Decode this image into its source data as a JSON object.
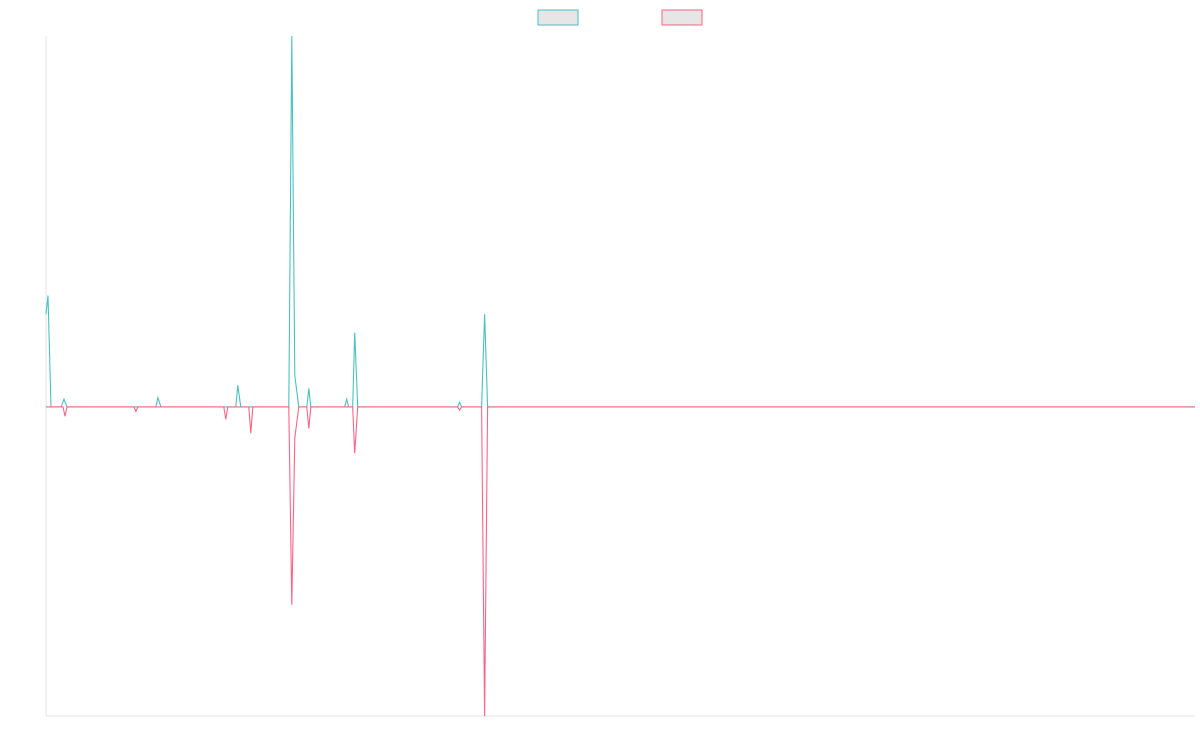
{
  "chart_data": {
    "type": "line",
    "title": "",
    "xlabel": "",
    "ylabel": "",
    "legend_position": "top-center",
    "grid": false,
    "x_range": [
      0,
      115
    ],
    "ylim": [
      -10,
      12
    ],
    "series": [
      {
        "name": "",
        "color": "#4bc0c0",
        "fill": "#e6e6e6",
        "points": [
          [
            0,
            3
          ],
          [
            0.2,
            3.6
          ],
          [
            0.5,
            0
          ],
          [
            1.5,
            0
          ],
          [
            1.8,
            0.25
          ],
          [
            2.1,
            0
          ],
          [
            11,
            0
          ],
          [
            11.2,
            0.3
          ],
          [
            11.5,
            0
          ],
          [
            19,
            0
          ],
          [
            19.2,
            0.7
          ],
          [
            19.5,
            0
          ],
          [
            24.3,
            0
          ],
          [
            24.6,
            12
          ],
          [
            24.9,
            1
          ],
          [
            25.3,
            0
          ],
          [
            26.1,
            0
          ],
          [
            26.3,
            0.6
          ],
          [
            26.5,
            0
          ],
          [
            29.9,
            0
          ],
          [
            30.1,
            0.25
          ],
          [
            30.3,
            0
          ],
          [
            30.7,
            0
          ],
          [
            30.9,
            2.4
          ],
          [
            31.2,
            0
          ],
          [
            41.2,
            0
          ],
          [
            41.4,
            0.15
          ],
          [
            41.6,
            0
          ],
          [
            43.6,
            0
          ],
          [
            43.9,
            3
          ],
          [
            44.2,
            0
          ],
          [
            115,
            0
          ]
        ]
      },
      {
        "name": "",
        "color": "#ff6384",
        "fill": "#e6e6e6",
        "points": [
          [
            0,
            0
          ],
          [
            1.7,
            0
          ],
          [
            1.9,
            -0.3
          ],
          [
            2.1,
            0
          ],
          [
            8.8,
            0
          ],
          [
            9.0,
            -0.15
          ],
          [
            9.2,
            0
          ],
          [
            17.8,
            0
          ],
          [
            18.0,
            -0.4
          ],
          [
            18.2,
            0
          ],
          [
            20.3,
            0
          ],
          [
            20.5,
            -0.85
          ],
          [
            20.7,
            0
          ],
          [
            24.3,
            0
          ],
          [
            24.6,
            -6.4
          ],
          [
            24.9,
            -1
          ],
          [
            25.3,
            0
          ],
          [
            26.1,
            0
          ],
          [
            26.3,
            -0.7
          ],
          [
            26.5,
            0
          ],
          [
            30.7,
            0
          ],
          [
            30.9,
            -1.5
          ],
          [
            31.2,
            0
          ],
          [
            41.2,
            0
          ],
          [
            41.4,
            -0.1
          ],
          [
            41.6,
            0
          ],
          [
            43.6,
            0
          ],
          [
            43.9,
            -10
          ],
          [
            44.2,
            0
          ],
          [
            115,
            0
          ]
        ]
      }
    ]
  }
}
